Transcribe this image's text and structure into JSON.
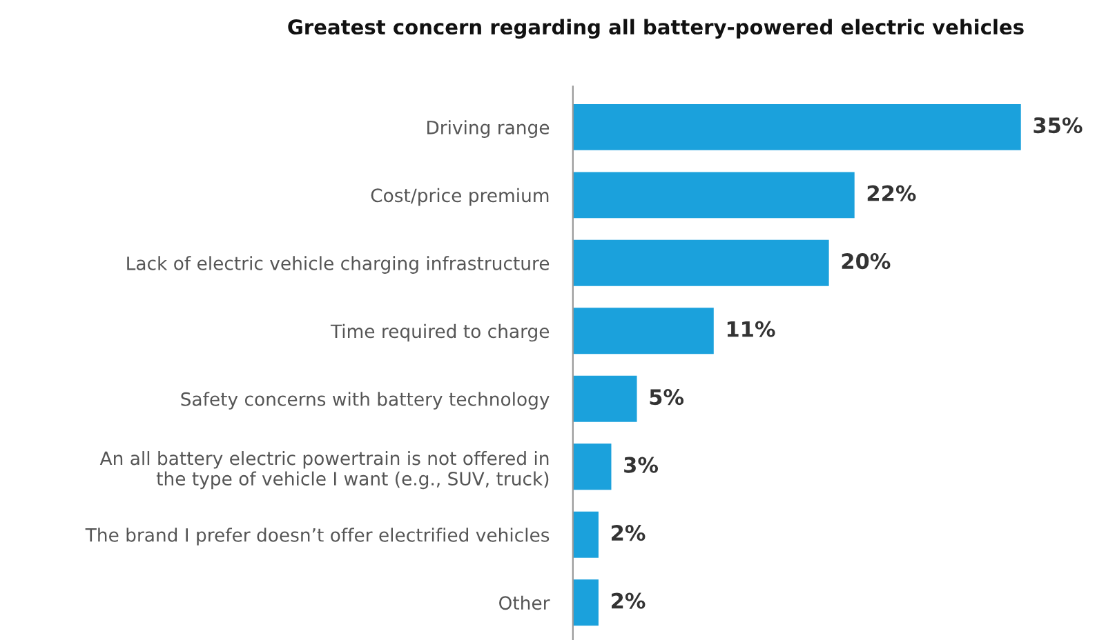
{
  "chart_data": {
    "type": "bar",
    "orientation": "horizontal",
    "title": "Greatest concern regarding all battery-powered electric vehicles",
    "categories": [
      "Driving range",
      "Cost/price premium",
      "Lack of electric vehicle charging infrastructure",
      "Time required to charge",
      "Safety concerns with battery technology",
      "An all battery electric powertrain is not offered in\nthe type of vehicle I want (e.g., SUV, truck)",
      "The brand I prefer doesn’t offer electrified vehicles",
      "Other"
    ],
    "values": [
      35,
      22,
      20,
      11,
      5,
      3,
      2,
      2
    ],
    "value_labels": [
      "35%",
      "22%",
      "20%",
      "11%",
      "5%",
      "3%",
      "2%",
      "2%"
    ],
    "color": "#1ba1dc",
    "grid": false,
    "legend": false
  }
}
